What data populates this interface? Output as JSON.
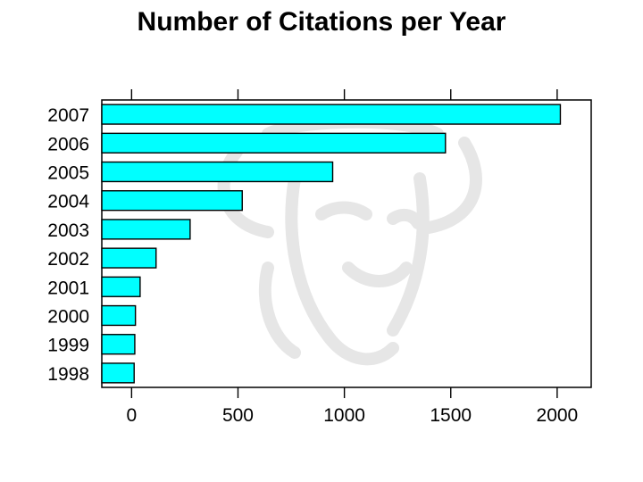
{
  "chart_data": {
    "type": "bar",
    "orientation": "horizontal",
    "title": "Number of Citations per Year",
    "xlabel": "",
    "ylabel": "",
    "categories": [
      "1998",
      "1999",
      "2000",
      "2001",
      "2002",
      "2003",
      "2004",
      "2005",
      "2006",
      "2007"
    ],
    "values": [
      12,
      15,
      18,
      40,
      115,
      275,
      520,
      945,
      1475,
      2015
    ],
    "xlim": [
      -140,
      2160
    ],
    "x_ticks": [
      "0",
      "500",
      "1000",
      "1500",
      "2000"
    ],
    "bar_color": "#00ffff",
    "grid": false,
    "legend": "none",
    "background_watermark": "gnu-head-icon"
  }
}
